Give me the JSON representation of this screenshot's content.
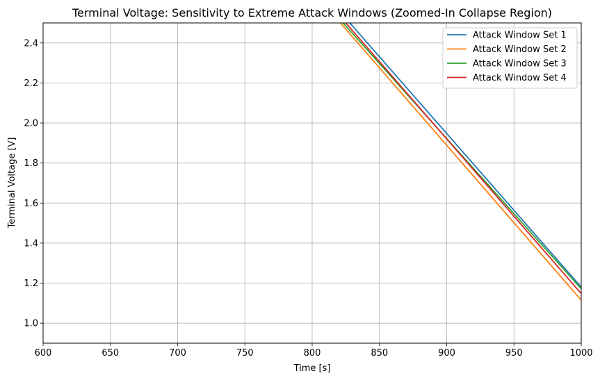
{
  "chart_data": {
    "type": "line",
    "title": "Terminal Voltage: Sensitivity to Extreme Attack Windows (Zoomed-In Collapse Region)",
    "xlabel": "Time [s]",
    "ylabel": "Terminal Voltage [V]",
    "xlim": [
      600,
      1000
    ],
    "ylim": [
      0.9,
      2.5
    ],
    "xticks": [
      600,
      650,
      700,
      750,
      800,
      850,
      900,
      950,
      1000
    ],
    "yticks": [
      1.0,
      1.2,
      1.4,
      1.6,
      1.8,
      2.0,
      2.2,
      2.4
    ],
    "ytick_labels": [
      "1.0",
      "1.2",
      "1.4",
      "1.6",
      "1.8",
      "2.0",
      "2.2",
      "2.4"
    ],
    "grid": true,
    "legend_position": "top-right",
    "series": [
      {
        "name": "Attack Window Set 1",
        "color": "#1f77b4",
        "x": [
          828,
          1000
        ],
        "y": [
          2.5,
          1.18
        ]
      },
      {
        "name": "Attack Window Set 2",
        "color": "#ff7f0e",
        "x": [
          821,
          1000
        ],
        "y": [
          2.5,
          1.115
        ]
      },
      {
        "name": "Attack Window Set 3",
        "color": "#2ca02c",
        "x": [
          823,
          1000
        ],
        "y": [
          2.5,
          1.172
        ]
      },
      {
        "name": "Attack Window Set 4",
        "color": "#d62728",
        "x": [
          825,
          1000
        ],
        "y": [
          2.5,
          1.148
        ]
      }
    ]
  }
}
